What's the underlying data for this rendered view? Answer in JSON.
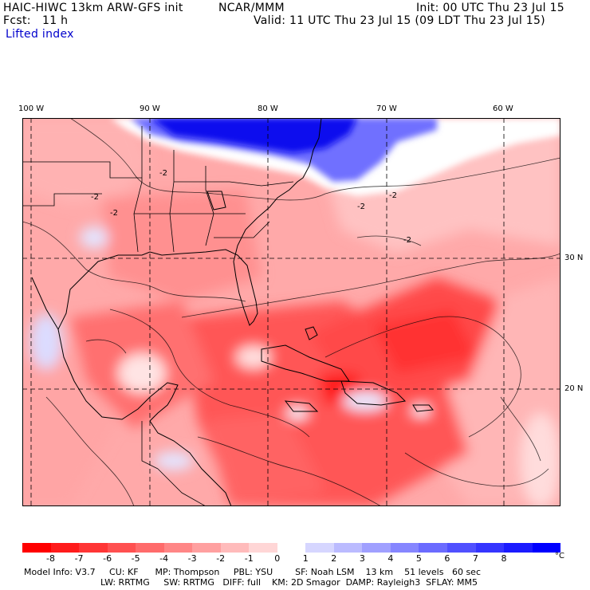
{
  "header": {
    "model_line": "HAIC-HIWC 13km ARW-GFS init",
    "center": "NCAR/MMM",
    "init": "Init: 00 UTC Thu 23 Jul 15",
    "fcst": "Fcst:   11 h",
    "valid": "Valid: 11 UTC Thu 23 Jul 15 (09 LDT Thu 23 Jul 15)",
    "field": "Lifted index"
  },
  "axes": {
    "lon_labels": [
      "100 W",
      "90 W",
      "80 W",
      "70 W",
      "60 W"
    ],
    "lat_labels": [
      "30 N",
      "20 N"
    ]
  },
  "contour_label": "-2",
  "colorbar": {
    "labels": [
      "-8",
      "-7",
      "-6",
      "-5",
      "-4",
      "-3",
      "-2",
      "-1",
      "0",
      "1",
      "2",
      "3",
      "4",
      "5",
      "6",
      "7",
      "8"
    ],
    "unit": "°C",
    "colors": [
      "#ff0000",
      "#ff1b1b",
      "#ff3535",
      "#ff5050",
      "#ff6b6b",
      "#ff8686",
      "#ffa0a0",
      "#ffbbbb",
      "#ffd6d6",
      "#ffffff",
      "#d6d6ff",
      "#bbbbff",
      "#a0a0ff",
      "#8686ff",
      "#6b6bff",
      "#5050ff",
      "#3535ff",
      "#1b1bff",
      "#0000ff"
    ]
  },
  "footer": {
    "line1": "Model Info: V3.7     CU: KF      MP: Thompson     PBL: YSU        SF: Noah LSM    13 km    51 levels   60 sec",
    "line2": "LW: RRTMG     SW: RRTMG   DIFF: full    KM: 2D Smagor  DAMP: Rayleigh3  SFLAY: MM5"
  }
}
